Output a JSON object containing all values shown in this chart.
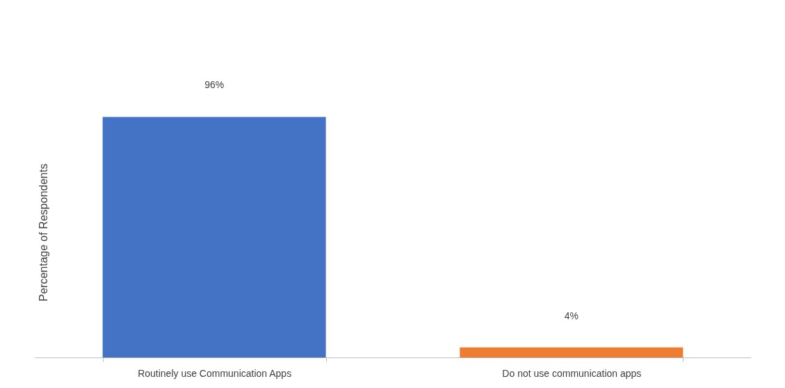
{
  "chart_data": {
    "type": "bar",
    "ylabel": "Percentage of Respondents",
    "categories": [
      "Routinely use Communication Apps",
      "Do not use communication apps"
    ],
    "values": [
      96,
      4
    ],
    "colors": [
      "#4472c4",
      "#ed7d31"
    ],
    "value_labels": [
      "96%",
      "4%"
    ],
    "legend": false
  }
}
